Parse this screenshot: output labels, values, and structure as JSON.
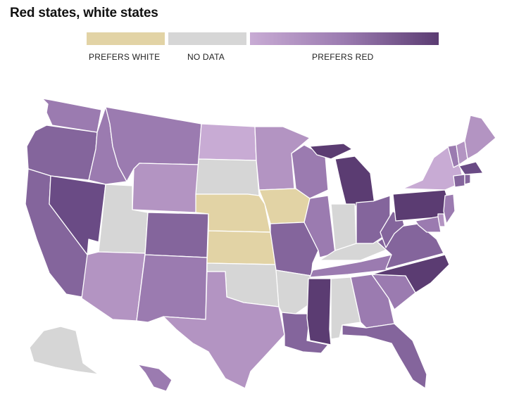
{
  "title": "Red states, white states",
  "legend": {
    "prefers_white": "PREFERS WHITE",
    "no_data": "NO DATA",
    "prefers_red": "PREFERS RED"
  },
  "colors": {
    "prefers_white": "#e2d3a5",
    "no_data": "#d6d6d6",
    "red_1": "#c8abd4",
    "red_2": "#b394c2",
    "red_3": "#9b7bb0",
    "red_4": "#84659c",
    "red_5": "#6a4b85",
    "red_6": "#5b3c72"
  },
  "states": [
    {
      "name": "WA",
      "cat": "red_3"
    },
    {
      "name": "OR",
      "cat": "red_4"
    },
    {
      "name": "CA",
      "cat": "red_4"
    },
    {
      "name": "NV",
      "cat": "red_5"
    },
    {
      "name": "ID",
      "cat": "red_3"
    },
    {
      "name": "MT",
      "cat": "red_3"
    },
    {
      "name": "WY",
      "cat": "red_2"
    },
    {
      "name": "UT",
      "cat": "no_data"
    },
    {
      "name": "AZ",
      "cat": "red_2"
    },
    {
      "name": "CO",
      "cat": "red_4"
    },
    {
      "name": "NM",
      "cat": "red_3"
    },
    {
      "name": "ND",
      "cat": "red_1"
    },
    {
      "name": "SD",
      "cat": "no_data"
    },
    {
      "name": "NE",
      "cat": "prefers_white"
    },
    {
      "name": "KS",
      "cat": "prefers_white"
    },
    {
      "name": "OK",
      "cat": "no_data"
    },
    {
      "name": "TX",
      "cat": "red_2"
    },
    {
      "name": "MN",
      "cat": "red_2"
    },
    {
      "name": "IA",
      "cat": "prefers_white"
    },
    {
      "name": "MO",
      "cat": "red_4"
    },
    {
      "name": "AR",
      "cat": "no_data"
    },
    {
      "name": "LA",
      "cat": "red_4"
    },
    {
      "name": "WI",
      "cat": "red_3"
    },
    {
      "name": "IL",
      "cat": "red_3"
    },
    {
      "name": "MI",
      "cat": "red_6"
    },
    {
      "name": "IN",
      "cat": "no_data"
    },
    {
      "name": "OH",
      "cat": "red_4"
    },
    {
      "name": "KY",
      "cat": "no_data"
    },
    {
      "name": "TN",
      "cat": "red_3"
    },
    {
      "name": "MS",
      "cat": "red_6"
    },
    {
      "name": "AL",
      "cat": "no_data"
    },
    {
      "name": "GA",
      "cat": "red_3"
    },
    {
      "name": "FL",
      "cat": "red_4"
    },
    {
      "name": "SC",
      "cat": "red_3"
    },
    {
      "name": "NC",
      "cat": "red_6"
    },
    {
      "name": "VA",
      "cat": "red_4"
    },
    {
      "name": "WV",
      "cat": "red_4"
    },
    {
      "name": "PA",
      "cat": "red_6"
    },
    {
      "name": "NY",
      "cat": "red_1"
    },
    {
      "name": "VT",
      "cat": "red_3"
    },
    {
      "name": "NH",
      "cat": "red_2"
    },
    {
      "name": "ME",
      "cat": "red_2"
    },
    {
      "name": "MA",
      "cat": "red_5"
    },
    {
      "name": "CT",
      "cat": "red_4"
    },
    {
      "name": "RI",
      "cat": "red_4"
    },
    {
      "name": "NJ",
      "cat": "red_3"
    },
    {
      "name": "DE",
      "cat": "red_2"
    },
    {
      "name": "MD",
      "cat": "red_3"
    },
    {
      "name": "AK",
      "cat": "no_data"
    },
    {
      "name": "HI",
      "cat": "red_3"
    }
  ]
}
